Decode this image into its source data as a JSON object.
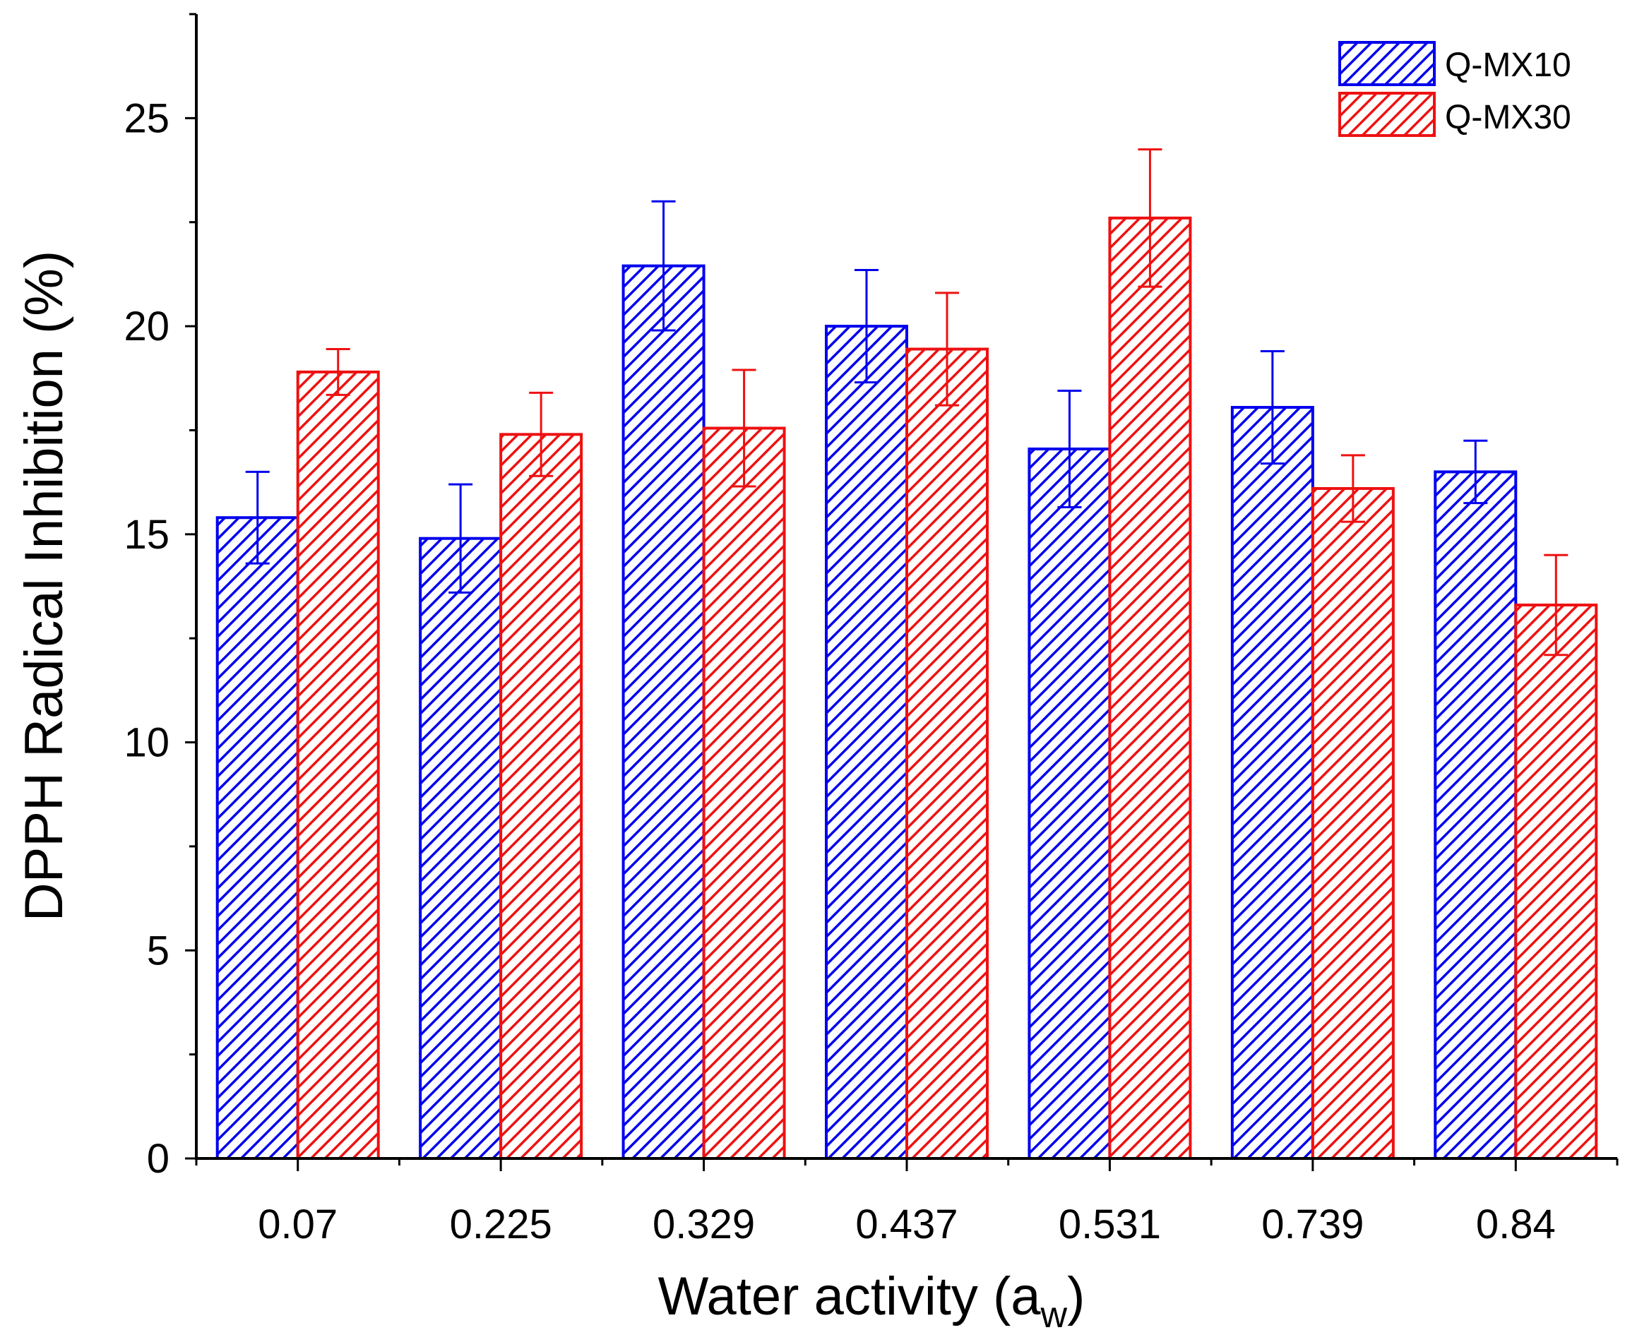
{
  "chart_data": {
    "type": "bar",
    "title": "",
    "xlabel": "Water activity (a",
    "xlabel_subscript": "w",
    "xlabel_close": ")",
    "ylabel": "DPPH Radical Inhibition (%)",
    "ylim": [
      0,
      27.5
    ],
    "yticks": [
      "0",
      "5",
      "10",
      "15",
      "20",
      "25"
    ],
    "ytick_values": [
      0,
      5,
      10,
      15,
      20,
      25
    ],
    "categories": [
      "0.07",
      "0.225",
      "0.329",
      "0.437",
      "0.531",
      "0.739",
      "0.84"
    ],
    "legend_position": "top-right",
    "series": [
      {
        "name": "Q-MX10",
        "color": "#0000ee",
        "values": [
          15.4,
          14.9,
          21.45,
          20.0,
          17.05,
          18.05,
          16.5
        ],
        "errors": [
          1.1,
          1.3,
          1.55,
          1.35,
          1.4,
          1.35,
          0.75
        ]
      },
      {
        "name": "Q-MX30",
        "color": "#ee1111",
        "values": [
          18.9,
          17.4,
          17.55,
          19.45,
          22.6,
          16.1,
          13.3
        ],
        "errors": [
          0.55,
          1.0,
          1.4,
          1.35,
          1.65,
          0.8,
          1.2
        ]
      }
    ]
  }
}
